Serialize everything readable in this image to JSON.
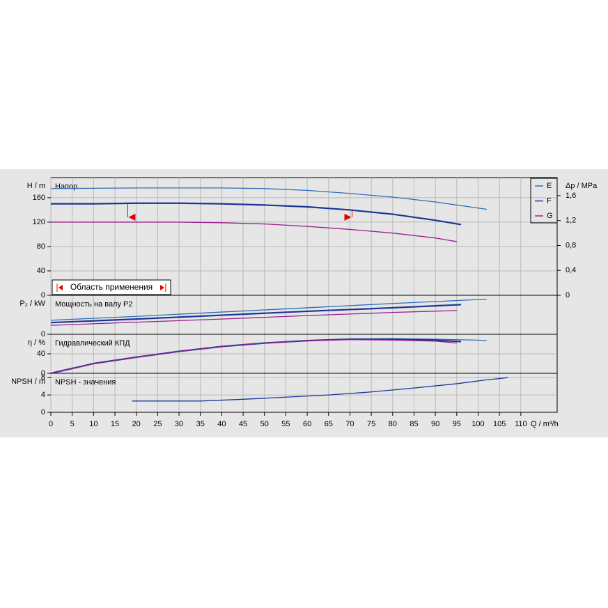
{
  "chart_data": [
    {
      "type": "line",
      "title": "Напор",
      "ylabel": "H / m",
      "y2label": "Δp / MPa",
      "ylim": [
        0,
        193
      ],
      "yticks": [
        0,
        40,
        80,
        120,
        160
      ],
      "y2lim": [
        0,
        1.89
      ],
      "y2ticks": [
        0,
        {
          "value": 0.4,
          "label": "0,4"
        },
        {
          "value": 0.8,
          "label": "0,8"
        },
        {
          "value": 1.2,
          "label": "1,2"
        },
        {
          "value": 1.6,
          "label": "1,6"
        }
      ],
      "annotation": {
        "text": "Область применения",
        "range": [
          18,
          70.5
        ],
        "level": 128
      },
      "series": [
        {
          "name": "E",
          "color": "#2f6db5",
          "x": [
            0,
            20,
            40,
            50,
            60,
            70,
            80,
            90,
            100,
            102
          ],
          "values": [
            175,
            176,
            176,
            175,
            172,
            167,
            161,
            153,
            143,
            141
          ]
        },
        {
          "name": "F",
          "color": "#1a3596",
          "x": [
            0,
            10,
            20,
            30,
            40,
            50,
            60,
            70,
            80,
            90,
            96
          ],
          "values": [
            150,
            150,
            151,
            151,
            150,
            148,
            145,
            140,
            133,
            123,
            116
          ]
        },
        {
          "name": "G",
          "color": "#9c1f8e",
          "x": [
            0,
            10,
            20,
            30,
            40,
            50,
            60,
            70,
            80,
            90,
            95
          ],
          "values": [
            120,
            120,
            120,
            120,
            119,
            117,
            113,
            108,
            102,
            94,
            88
          ]
        }
      ]
    },
    {
      "type": "line",
      "title": "Мощность на валу P2",
      "ylabel": "P₂ / kW",
      "ylim": [
        0,
        10
      ],
      "yticks": [
        0
      ],
      "series": [
        {
          "name": "E",
          "color": "#2f6db5",
          "x": [
            0,
            20,
            40,
            60,
            80,
            100,
            102
          ],
          "values": [
            3.6,
            4.6,
            5.7,
            6.8,
            7.9,
            8.9,
            9.0
          ]
        },
        {
          "name": "F",
          "color": "#1a3596",
          "x": [
            0,
            20,
            40,
            60,
            80,
            96
          ],
          "values": [
            3.0,
            3.9,
            4.9,
            5.9,
            6.8,
            7.6
          ]
        },
        {
          "name": "G",
          "color": "#9c1f8e",
          "x": [
            0,
            20,
            40,
            60,
            80,
            95
          ],
          "values": [
            2.3,
            3.1,
            3.9,
            4.8,
            5.6,
            6.1
          ]
        }
      ]
    },
    {
      "type": "line",
      "title": "Гидравлический КПД",
      "ylabel": "η / %",
      "ylim": [
        0,
        80
      ],
      "yticks": [
        0,
        40
      ],
      "series": [
        {
          "name": "E",
          "color": "#2f6db5",
          "x": [
            0,
            5,
            10,
            20,
            30,
            40,
            50,
            60,
            70,
            80,
            90,
            100,
            102
          ],
          "values": [
            0,
            10,
            20,
            33,
            45,
            55,
            62,
            67,
            70,
            71,
            70,
            68,
            67
          ]
        },
        {
          "name": "F",
          "color": "#1a3596",
          "x": [
            0,
            5,
            10,
            20,
            30,
            40,
            50,
            60,
            70,
            80,
            90,
            96
          ],
          "values": [
            0,
            10,
            20,
            33,
            45,
            55,
            62,
            67,
            70,
            70,
            68,
            65
          ]
        },
        {
          "name": "G",
          "color": "#9c1f8e",
          "x": [
            0,
            5,
            10,
            20,
            30,
            40,
            50,
            60,
            70,
            80,
            90,
            95
          ],
          "values": [
            0,
            10,
            20,
            33,
            45,
            55,
            62,
            67,
            69,
            68,
            66,
            62
          ]
        }
      ]
    },
    {
      "type": "line",
      "title": "NPSH - значения",
      "ylabel": "NPSH / m",
      "xlabel": "Q / m³/h",
      "ylim": [
        0,
        9
      ],
      "yticks": [
        0,
        4,
        8
      ],
      "xlim": [
        0,
        118.5
      ],
      "xticks": [
        0,
        5,
        10,
        15,
        20,
        25,
        30,
        35,
        40,
        45,
        50,
        55,
        60,
        65,
        70,
        75,
        80,
        85,
        90,
        95,
        100,
        105,
        110
      ],
      "series": [
        {
          "color": "#1a3596",
          "x": [
            19,
            25,
            35,
            45,
            55,
            65,
            75,
            85,
            95,
            102,
            107
          ],
          "values": [
            2.6,
            2.6,
            2.6,
            3.0,
            3.5,
            4.0,
            4.7,
            5.6,
            6.6,
            7.5,
            8.0
          ]
        }
      ]
    }
  ]
}
